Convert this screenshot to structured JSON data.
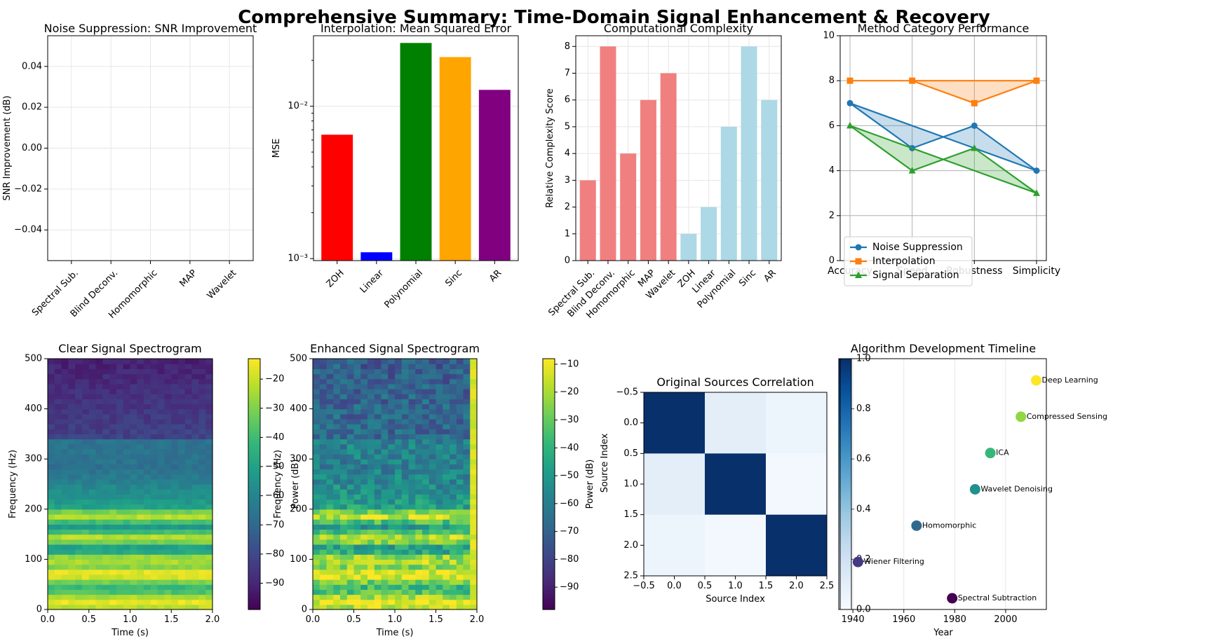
{
  "figure": {
    "title": "Comprehensive Summary: Time-Domain Signal Enhancement & Recovery"
  },
  "chart_data": [
    {
      "type": "bar",
      "title": "Noise Suppression: SNR Improvement",
      "ylabel": "SNR Improvement (dB)",
      "categories": [
        "Spectral Sub.",
        "Blind Deconv.",
        "Homomorphic",
        "MAP",
        "Wavelet"
      ],
      "values": [
        0,
        0,
        0,
        0,
        0
      ],
      "ylim": [
        -0.055,
        0.055
      ],
      "yticks": [
        "0.04",
        "0.02",
        "0.00",
        "−0.02",
        "−0.04"
      ],
      "ytick_values": [
        0.04,
        0.02,
        0.0,
        -0.02,
        -0.04
      ],
      "grid": true
    },
    {
      "type": "bar",
      "title": "Interpolation: Mean Squared Error",
      "ylabel": "MSE",
      "yscale": "log",
      "categories": [
        "ZOH",
        "Linear",
        "Polynomial",
        "Sinc",
        "AR"
      ],
      "values": [
        0.0065,
        0.0011,
        0.026,
        0.021,
        0.0128
      ],
      "colors": [
        "#ff0000",
        "#0000ff",
        "#008000",
        "#ffa500",
        "#800080"
      ],
      "ylim": [
        0.00097,
        0.029
      ],
      "yticks": [
        "10⁻³",
        "10⁻²"
      ],
      "ytick_values": [
        0.001,
        0.01
      ],
      "grid": true
    },
    {
      "type": "bar",
      "title": "Computational Complexity",
      "ylabel": "Relative Complexity Score",
      "categories": [
        "Spectral Sub.",
        "Blind Deconv.",
        "Homomorphic",
        "MAP",
        "Wavelet",
        "ZOH",
        "Linear",
        "Polynomial",
        "Sinc",
        "AR"
      ],
      "values": [
        3,
        8,
        4,
        6,
        7,
        1,
        2,
        5,
        8,
        6
      ],
      "colors": [
        "#f08080",
        "#f08080",
        "#f08080",
        "#f08080",
        "#f08080",
        "#add8e6",
        "#add8e6",
        "#add8e6",
        "#add8e6",
        "#add8e6"
      ],
      "ylim": [
        0,
        8.4
      ],
      "yticks": [
        "0",
        "1",
        "2",
        "3",
        "4",
        "5",
        "6",
        "7",
        "8"
      ],
      "grid": true
    },
    {
      "type": "line",
      "title": "Method Category Performance",
      "categories": [
        "Accuracy",
        "Speed",
        "Robustness",
        "Simplicity"
      ],
      "ylim": [
        0,
        10
      ],
      "yticks": [
        "0",
        "2",
        "4",
        "6",
        "8",
        "10"
      ],
      "legend_position": "lower-left",
      "grid": true,
      "series": [
        {
          "name": "Noise Suppression",
          "values": [
            7,
            5,
            6,
            4
          ],
          "color": "#1f77b4",
          "marker": "circle"
        },
        {
          "name": "Interpolation",
          "values": [
            8,
            8,
            7,
            8
          ],
          "color": "#ff7f0e",
          "marker": "square"
        },
        {
          "name": "Signal Separation",
          "values": [
            6,
            4,
            5,
            3
          ],
          "color": "#2ca02c",
          "marker": "triangle"
        }
      ]
    },
    {
      "type": "heatmap",
      "title": "Clear Signal Spectrogram",
      "xlabel": "Time (s)",
      "ylabel": "Frequency (Hz)",
      "xlim": [
        0.0,
        2.0
      ],
      "ylim": [
        0,
        500
      ],
      "xticks": [
        "0.0",
        "0.5",
        "1.0",
        "1.5",
        "2.0"
      ],
      "yticks": [
        "0",
        "100",
        "200",
        "300",
        "400",
        "500"
      ],
      "colormap": "viridis",
      "colorbar_label": "Power (dB)",
      "colorbar_range": [
        -99,
        -13
      ],
      "colorbar_ticks": [
        "−20",
        "−30",
        "−40",
        "−50",
        "−60",
        "−70",
        "−80",
        "−90"
      ]
    },
    {
      "type": "heatmap",
      "title": "Enhanced Signal Spectrogram",
      "xlabel": "Time (s)",
      "ylabel": "Frequency (Hz)",
      "xlim": [
        0.0,
        2.0
      ],
      "ylim": [
        0,
        500
      ],
      "xticks": [
        "0.0",
        "0.5",
        "1.0",
        "1.5",
        "2.0"
      ],
      "yticks": [
        "0",
        "100",
        "200",
        "300",
        "400",
        "500"
      ],
      "colormap": "viridis",
      "colorbar_label": "Power (dB)",
      "colorbar_range": [
        -98,
        -8
      ],
      "colorbar_ticks": [
        "−10",
        "−20",
        "−30",
        "−40",
        "−50",
        "−60",
        "−70",
        "−80",
        "−90"
      ]
    },
    {
      "type": "heatmap",
      "title": "Original Sources Correlation",
      "xlabel": "Source Index",
      "ylabel": "Source Index",
      "matrix": [
        [
          1.0,
          0.1,
          0.05
        ],
        [
          0.1,
          1.0,
          0.02
        ],
        [
          0.05,
          0.02,
          1.0
        ]
      ],
      "xticks": [
        "−0.5",
        "0.0",
        "0.5",
        "1.0",
        "1.5",
        "2.0",
        "2.5"
      ],
      "yticks": [
        "−0.5",
        "0.0",
        "0.5",
        "1.0",
        "1.5",
        "2.0",
        "2.5"
      ],
      "colormap": "Blues",
      "colorbar_range": [
        0,
        1
      ],
      "colorbar_ticks": [
        "0.0",
        "0.2",
        "0.4",
        "0.6",
        "0.8",
        "1.0"
      ]
    },
    {
      "type": "scatter",
      "title": "Algorithm Development Timeline",
      "xlabel": "Year",
      "xlim": [
        1935,
        2016
      ],
      "xticks": [
        "1940",
        "1960",
        "1980",
        "2000"
      ],
      "xtick_values": [
        1940,
        1960,
        1980,
        2000
      ],
      "grid": true,
      "points": [
        {
          "label": "Spectral Subtraction",
          "year": 1979,
          "color": "#440154"
        },
        {
          "label": "Wiener Filtering",
          "year": 1942,
          "color": "#443983"
        },
        {
          "label": "Homomorphic",
          "year": 1965,
          "color": "#31688e"
        },
        {
          "label": "Wavelet Denoising",
          "year": 1988,
          "color": "#21918c"
        },
        {
          "label": "ICA",
          "year": 1994,
          "color": "#35b779"
        },
        {
          "label": "Compressed Sensing",
          "year": 2006,
          "color": "#90d743"
        },
        {
          "label": "Deep Learning",
          "year": 2012,
          "color": "#fde725"
        }
      ]
    }
  ]
}
